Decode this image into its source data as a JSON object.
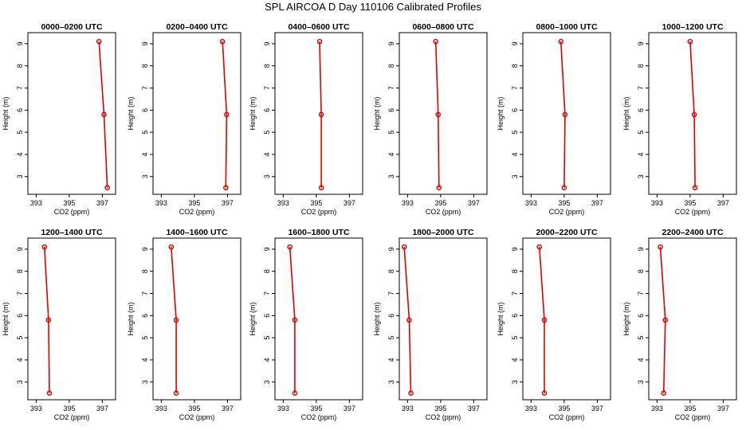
{
  "title": "SPL AIRCOA D  Day 110106  Calibrated Profiles",
  "colors": {
    "series": "#e00000",
    "axes": "#000000"
  },
  "chart_data": [
    {
      "type": "line",
      "title": "0000–0200 UTC",
      "xlabel": "CO2 (ppm)",
      "ylabel": "Height (m)",
      "xlim": [
        392.5,
        397.8
      ],
      "ylim": [
        2.2,
        9.5
      ],
      "xticks": [
        393,
        395,
        397
      ],
      "yticks": [
        3,
        4,
        5,
        6,
        7,
        8,
        9
      ],
      "series": [
        {
          "x": [
            397.3,
            397.1,
            396.8
          ],
          "y": [
            2.5,
            5.8,
            9.1
          ]
        }
      ]
    },
    {
      "type": "line",
      "title": "0200–0400 UTC",
      "xlabel": "CO2 (ppm)",
      "ylabel": "Height (m)",
      "xlim": [
        392.5,
        397.8
      ],
      "ylim": [
        2.2,
        9.5
      ],
      "xticks": [
        393,
        395,
        397
      ],
      "yticks": [
        3,
        4,
        5,
        6,
        7,
        8,
        9
      ],
      "series": [
        {
          "x": [
            396.9,
            396.95,
            396.7
          ],
          "y": [
            2.5,
            5.8,
            9.1
          ]
        }
      ]
    },
    {
      "type": "line",
      "title": "0400–0600 UTC",
      "xlabel": "CO2 (ppm)",
      "ylabel": "Height (m)",
      "xlim": [
        392.5,
        397.8
      ],
      "ylim": [
        2.2,
        9.5
      ],
      "xticks": [
        393,
        395,
        397
      ],
      "yticks": [
        3,
        4,
        5,
        6,
        7,
        8,
        9
      ],
      "series": [
        {
          "x": [
            395.3,
            395.3,
            395.2
          ],
          "y": [
            2.5,
            5.8,
            9.1
          ]
        }
      ]
    },
    {
      "type": "line",
      "title": "0600–0800 UTC",
      "xlabel": "CO2 (ppm)",
      "ylabel": "Height (m)",
      "xlim": [
        392.5,
        397.8
      ],
      "ylim": [
        2.2,
        9.5
      ],
      "xticks": [
        393,
        395,
        397
      ],
      "yticks": [
        3,
        4,
        5,
        6,
        7,
        8,
        9
      ],
      "series": [
        {
          "x": [
            394.9,
            394.85,
            394.7
          ],
          "y": [
            2.5,
            5.8,
            9.1
          ]
        }
      ]
    },
    {
      "type": "line",
      "title": "0800–1000 UTC",
      "xlabel": "CO2 (ppm)",
      "ylabel": "Height (m)",
      "xlim": [
        392.5,
        397.8
      ],
      "ylim": [
        2.2,
        9.5
      ],
      "xticks": [
        393,
        395,
        397
      ],
      "yticks": [
        3,
        4,
        5,
        6,
        7,
        8,
        9
      ],
      "series": [
        {
          "x": [
            395.0,
            395.05,
            394.8
          ],
          "y": [
            2.5,
            5.8,
            9.1
          ]
        }
      ]
    },
    {
      "type": "line",
      "title": "1000–1200 UTC",
      "xlabel": "CO2 (ppm)",
      "ylabel": "Height (m)",
      "xlim": [
        392.5,
        397.8
      ],
      "ylim": [
        2.2,
        9.5
      ],
      "xticks": [
        393,
        395,
        397
      ],
      "yticks": [
        3,
        4,
        5,
        6,
        7,
        8,
        9
      ],
      "series": [
        {
          "x": [
            395.3,
            395.25,
            395.0
          ],
          "y": [
            2.5,
            5.8,
            9.1
          ]
        }
      ]
    },
    {
      "type": "line",
      "title": "1200–1400 UTC",
      "xlabel": "CO2 (ppm)",
      "ylabel": "Height (m)",
      "xlim": [
        392.5,
        397.8
      ],
      "ylim": [
        2.2,
        9.5
      ],
      "xticks": [
        393,
        395,
        397
      ],
      "yticks": [
        3,
        4,
        5,
        6,
        7,
        8,
        9
      ],
      "series": [
        {
          "x": [
            393.8,
            393.75,
            393.5
          ],
          "y": [
            2.5,
            5.8,
            9.1
          ]
        }
      ]
    },
    {
      "type": "line",
      "title": "1400–1600 UTC",
      "xlabel": "CO2 (ppm)",
      "ylabel": "Height (m)",
      "xlim": [
        392.5,
        397.8
      ],
      "ylim": [
        2.2,
        9.5
      ],
      "xticks": [
        393,
        395,
        397
      ],
      "yticks": [
        3,
        4,
        5,
        6,
        7,
        8,
        9
      ],
      "series": [
        {
          "x": [
            393.9,
            393.9,
            393.6
          ],
          "y": [
            2.5,
            5.8,
            9.1
          ]
        }
      ]
    },
    {
      "type": "line",
      "title": "1600–1800 UTC",
      "xlabel": "CO2 (ppm)",
      "ylabel": "Height (m)",
      "xlim": [
        392.5,
        397.8
      ],
      "ylim": [
        2.2,
        9.5
      ],
      "xticks": [
        393,
        395,
        397
      ],
      "yticks": [
        3,
        4,
        5,
        6,
        7,
        8,
        9
      ],
      "series": [
        {
          "x": [
            393.7,
            393.7,
            393.4
          ],
          "y": [
            2.5,
            5.8,
            9.1
          ]
        }
      ]
    },
    {
      "type": "line",
      "title": "1800–2000 UTC",
      "xlabel": "CO2 (ppm)",
      "ylabel": "Height (m)",
      "xlim": [
        392.5,
        397.8
      ],
      "ylim": [
        2.2,
        9.5
      ],
      "xticks": [
        393,
        395,
        397
      ],
      "yticks": [
        3,
        4,
        5,
        6,
        7,
        8,
        9
      ],
      "series": [
        {
          "x": [
            393.2,
            393.1,
            392.8
          ],
          "y": [
            2.5,
            5.8,
            9.1
          ]
        }
      ]
    },
    {
      "type": "line",
      "title": "2000–2200 UTC",
      "xlabel": "CO2 (ppm)",
      "ylabel": "Height (m)",
      "xlim": [
        392.5,
        397.8
      ],
      "ylim": [
        2.2,
        9.5
      ],
      "xticks": [
        393,
        395,
        397
      ],
      "yticks": [
        3,
        4,
        5,
        6,
        7,
        8,
        9
      ],
      "series": [
        {
          "x": [
            393.8,
            393.8,
            393.5
          ],
          "y": [
            2.5,
            5.8,
            9.1
          ]
        }
      ]
    },
    {
      "type": "line",
      "title": "2200–2400 UTC",
      "xlabel": "CO2 (ppm)",
      "ylabel": "Height (m)",
      "xlim": [
        392.5,
        397.8
      ],
      "ylim": [
        2.2,
        9.5
      ],
      "xticks": [
        393,
        395,
        397
      ],
      "yticks": [
        3,
        4,
        5,
        6,
        7,
        8,
        9
      ],
      "series": [
        {
          "x": [
            393.4,
            393.5,
            393.2
          ],
          "y": [
            2.5,
            5.8,
            9.1
          ]
        }
      ]
    }
  ]
}
